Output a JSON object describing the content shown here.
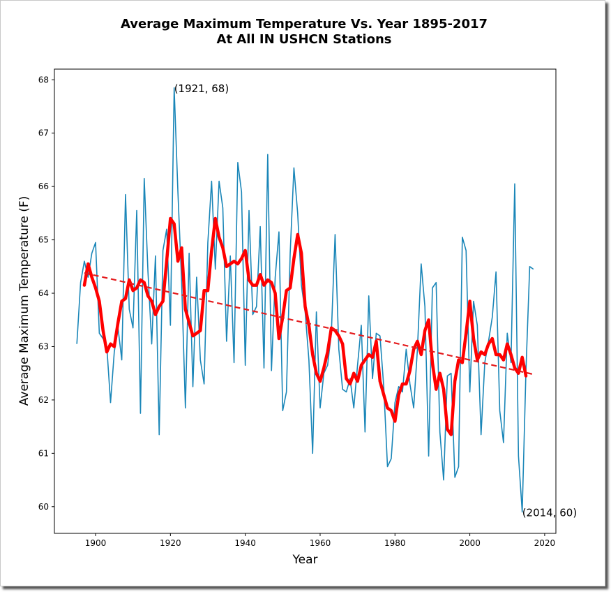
{
  "chart_data": {
    "type": "line",
    "title": "Average Maximum Temperature Vs. Year 1895-2017",
    "subtitle": "At All IN USHCN Stations",
    "xlabel": "Year",
    "ylabel": "Average Maximum Temperature (F)",
    "xlim": [
      1889,
      2023
    ],
    "ylim": [
      59.5,
      68.2
    ],
    "xticks": [
      1900,
      1920,
      1940,
      1960,
      1980,
      2000,
      2020
    ],
    "yticks": [
      60,
      61,
      62,
      63,
      64,
      65,
      66,
      67,
      68
    ],
    "grid": false,
    "colors": {
      "raw": "#1a86b8",
      "smooth": "#ff0000",
      "trend": "#e41a1c"
    },
    "series": [
      {
        "style": "thin-line",
        "x": [
          1895,
          1896,
          1897,
          1898,
          1899,
          1900,
          1901,
          1902,
          1903,
          1904,
          1905,
          1906,
          1907,
          1908,
          1909,
          1910,
          1911,
          1912,
          1913,
          1914,
          1915,
          1916,
          1917,
          1918,
          1919,
          1920,
          1921,
          1922,
          1923,
          1924,
          1925,
          1926,
          1927,
          1928,
          1929,
          1930,
          1931,
          1932,
          1933,
          1934,
          1935,
          1936,
          1937,
          1938,
          1939,
          1940,
          1941,
          1942,
          1943,
          1944,
          1945,
          1946,
          1947,
          1948,
          1949,
          1950,
          1951,
          1952,
          1953,
          1954,
          1955,
          1956,
          1957,
          1958,
          1959,
          1960,
          1961,
          1962,
          1963,
          1964,
          1965,
          1966,
          1967,
          1968,
          1969,
          1970,
          1971,
          1972,
          1973,
          1974,
          1975,
          1976,
          1977,
          1978,
          1979,
          1980,
          1981,
          1982,
          1983,
          1984,
          1985,
          1986,
          1987,
          1988,
          1989,
          1990,
          1991,
          1992,
          1993,
          1994,
          1995,
          1996,
          1997,
          1998,
          1999,
          2000,
          2001,
          2002,
          2003,
          2004,
          2005,
          2006,
          2007,
          2008,
          2009,
          2010,
          2011,
          2012,
          2013,
          2014,
          2015,
          2016,
          2017
        ],
        "y": [
          63.05,
          64.2,
          64.6,
          64.3,
          64.75,
          64.95,
          63.25,
          63.15,
          63.0,
          61.95,
          62.9,
          63.35,
          62.75,
          65.85,
          63.7,
          63.35,
          65.55,
          61.75,
          66.15,
          64.4,
          63.05,
          64.7,
          61.35,
          64.8,
          65.2,
          63.4,
          67.85,
          65.9,
          64.2,
          61.85,
          64.75,
          62.25,
          64.3,
          62.75,
          62.3,
          64.95,
          66.1,
          64.45,
          66.1,
          65.6,
          63.1,
          64.7,
          62.7,
          66.45,
          65.9,
          62.65,
          65.55,
          63.6,
          63.75,
          65.25,
          62.6,
          66.6,
          62.55,
          64.3,
          65.15,
          61.8,
          62.15,
          64.75,
          66.35,
          65.5,
          64.15,
          63.65,
          62.75,
          61.0,
          63.65,
          61.85,
          62.5,
          62.65,
          63.25,
          65.1,
          62.95,
          62.2,
          62.15,
          62.4,
          61.85,
          62.65,
          63.4,
          61.4,
          63.95,
          62.4,
          63.25,
          63.2,
          62.25,
          60.75,
          60.9,
          61.95,
          62.25,
          62.15,
          62.95,
          62.3,
          61.85,
          62.95,
          64.55,
          63.75,
          60.95,
          64.1,
          64.2,
          61.4,
          60.5,
          62.45,
          62.5,
          60.55,
          60.75,
          65.05,
          64.8,
          62.15,
          63.85,
          63.4,
          61.35,
          62.7,
          63.1,
          63.55,
          64.4,
          61.8,
          61.2,
          63.25,
          62.7,
          66.05,
          60.95,
          59.9,
          62.55,
          64.5,
          64.45
        ]
      },
      {
        "style": "thick-smoothed",
        "x": [
          1897,
          1898,
          1899,
          1900,
          1901,
          1902,
          1903,
          1904,
          1905,
          1906,
          1907,
          1908,
          1909,
          1910,
          1911,
          1912,
          1913,
          1914,
          1915,
          1916,
          1917,
          1918,
          1919,
          1920,
          1921,
          1922,
          1923,
          1924,
          1925,
          1926,
          1927,
          1928,
          1929,
          1930,
          1931,
          1932,
          1933,
          1934,
          1935,
          1936,
          1937,
          1938,
          1939,
          1940,
          1941,
          1942,
          1943,
          1944,
          1945,
          1946,
          1947,
          1948,
          1949,
          1950,
          1951,
          1952,
          1953,
          1954,
          1955,
          1956,
          1957,
          1958,
          1959,
          1960,
          1961,
          1962,
          1963,
          1964,
          1965,
          1966,
          1967,
          1968,
          1969,
          1970,
          1971,
          1972,
          1973,
          1974,
          1975,
          1976,
          1977,
          1978,
          1979,
          1980,
          1981,
          1982,
          1983,
          1984,
          1985,
          1986,
          1987,
          1988,
          1989,
          1990,
          1991,
          1992,
          1993,
          1994,
          1995,
          1996,
          1997,
          1998,
          1999,
          2000,
          2001,
          2002,
          2003,
          2004,
          2005,
          2006,
          2007,
          2008,
          2009,
          2010,
          2011,
          2012,
          2013,
          2014,
          2015
        ],
        "y": [
          64.15,
          64.55,
          64.3,
          64.1,
          63.85,
          63.3,
          62.9,
          63.05,
          63.0,
          63.45,
          63.85,
          63.9,
          64.25,
          64.05,
          64.1,
          64.25,
          64.2,
          63.95,
          63.85,
          63.6,
          63.75,
          63.85,
          64.6,
          65.4,
          65.3,
          64.6,
          64.85,
          63.7,
          63.45,
          63.2,
          63.25,
          63.3,
          64.05,
          64.05,
          64.8,
          65.4,
          65.05,
          64.85,
          64.5,
          64.55,
          64.6,
          64.55,
          64.65,
          64.8,
          64.25,
          64.15,
          64.15,
          64.35,
          64.15,
          64.25,
          64.2,
          64.0,
          63.15,
          63.55,
          64.05,
          64.1,
          64.65,
          65.1,
          64.75,
          63.75,
          63.4,
          62.85,
          62.5,
          62.35,
          62.6,
          62.9,
          63.35,
          63.3,
          63.2,
          63.05,
          62.4,
          62.3,
          62.5,
          62.35,
          62.65,
          62.75,
          62.85,
          62.8,
          63.1,
          62.35,
          62.1,
          61.85,
          61.8,
          61.6,
          62.1,
          62.3,
          62.3,
          62.55,
          62.95,
          63.1,
          62.85,
          63.3,
          63.5,
          62.7,
          62.2,
          62.5,
          62.2,
          61.45,
          61.35,
          62.35,
          62.75,
          62.7,
          63.25,
          63.85,
          63.15,
          62.75,
          62.9,
          62.85,
          63.05,
          63.15,
          62.85,
          62.85,
          62.75,
          63.05,
          62.85,
          62.6,
          62.5,
          62.8,
          62.45
        ]
      },
      {
        "style": "dashed-trend",
        "x": [
          1897,
          2017
        ],
        "y": [
          64.38,
          62.48
        ]
      }
    ],
    "annotations": [
      {
        "text": "(1921, 68)",
        "x": 1921,
        "y": 67.85
      },
      {
        "text": "(2014, 60)",
        "x": 2014,
        "y": 59.9
      }
    ]
  }
}
